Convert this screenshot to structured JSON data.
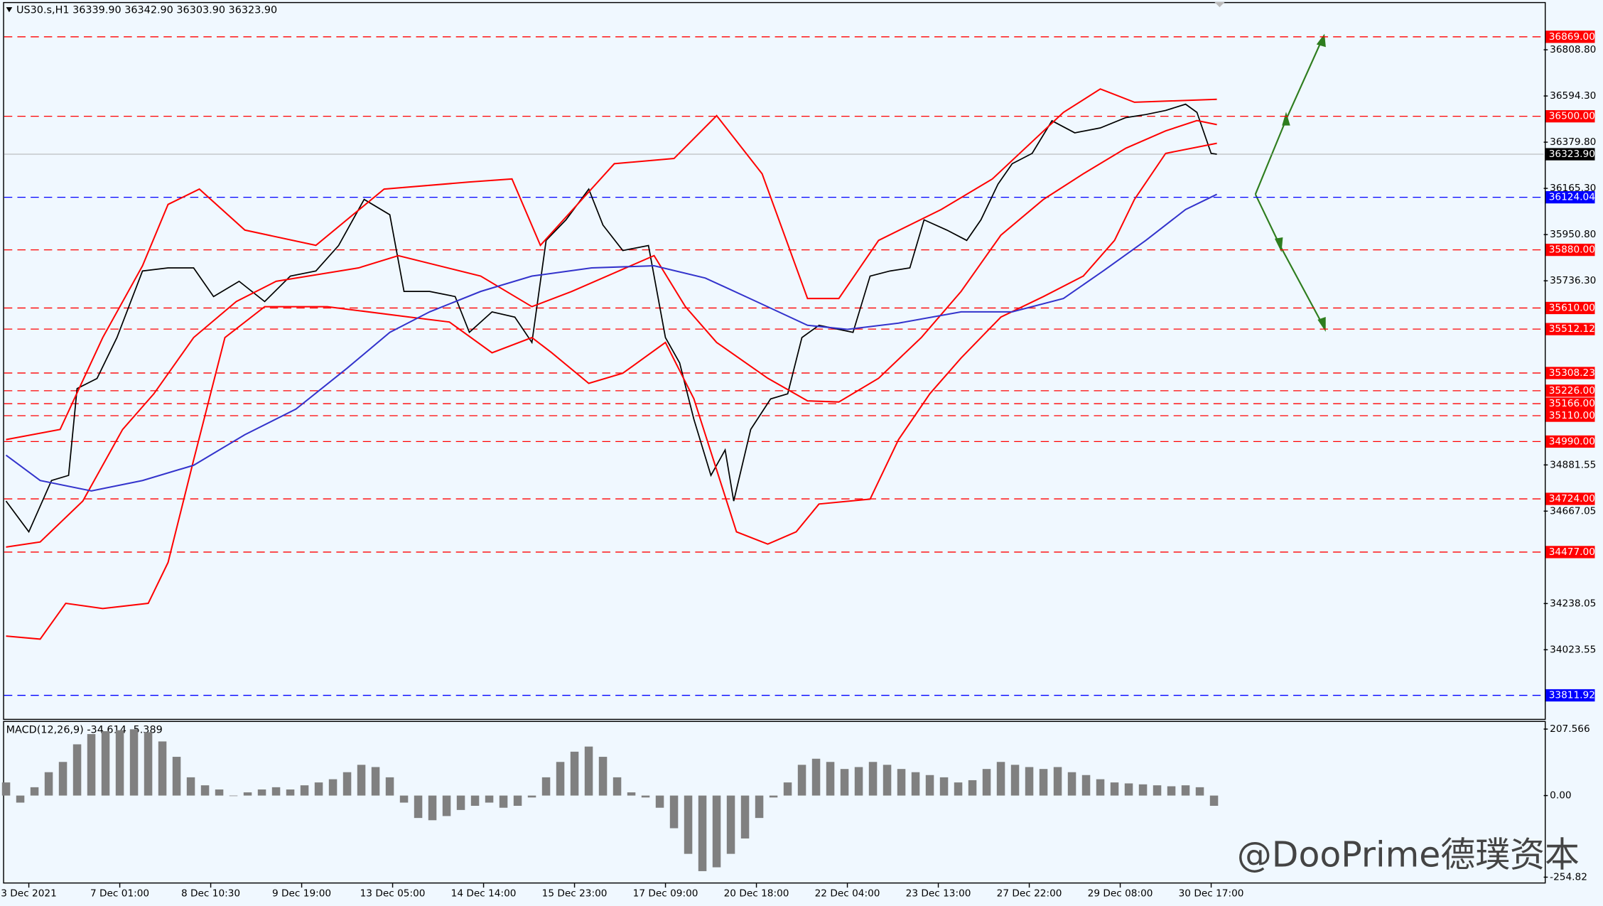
{
  "chart_data": [
    {
      "type": "line",
      "title": "US30.s,H1  36339.90 36342.90 36303.90 36323.90",
      "xlim": [
        -0.7,
        541
      ],
      "ylim": [
        33702.7,
        37025.6
      ],
      "xticks": [
        {
          "value": 8,
          "label": "3 Dec 2021"
        },
        {
          "value": 40,
          "label": "7 Dec 01:00"
        },
        {
          "value": 72,
          "label": "8 Dec 10:30"
        },
        {
          "value": 104,
          "label": "9 Dec 19:00"
        },
        {
          "value": 136,
          "label": "13 Dec 05:00"
        },
        {
          "value": 168,
          "label": "14 Dec 14:00"
        },
        {
          "value": 200,
          "label": "15 Dec 23:00"
        },
        {
          "value": 232,
          "label": "17 Dec 09:00"
        },
        {
          "value": 264,
          "label": "20 Dec 18:00"
        },
        {
          "value": 296,
          "label": "22 Dec 04:00"
        },
        {
          "value": 328,
          "label": "23 Dec 13:00"
        },
        {
          "value": 360,
          "label": "27 Dec 22:00"
        },
        {
          "value": 392,
          "label": "29 Dec 08:00"
        },
        {
          "value": 424,
          "label": "30 Dec 17:00"
        }
      ],
      "yticks": [
        {
          "value": 36808.8,
          "label": "36808.80"
        },
        {
          "value": 36594.3,
          "label": "36594.30"
        },
        {
          "value": 36379.8,
          "label": "36379.80"
        },
        {
          "value": 36165.3,
          "label": "36165.30"
        },
        {
          "value": 35950.8,
          "label": "35950.80"
        },
        {
          "value": 35736.3,
          "label": "35736.30"
        },
        {
          "value": 34881.55,
          "label": "34881.55"
        },
        {
          "value": 34667.05,
          "label": "34667.05"
        },
        {
          "value": 34238.05,
          "label": "34238.05"
        },
        {
          "value": 34023.55,
          "label": "34023.55"
        }
      ],
      "levels": [
        {
          "value": 36869,
          "label": "36869.00",
          "color": "#ff0000"
        },
        {
          "value": 36500,
          "label": "36500.00",
          "color": "#ff0000"
        },
        {
          "value": 36124.04,
          "label": "36124.04",
          "color": "#0000ff"
        },
        {
          "value": 35880,
          "label": "35880.00",
          "color": "#ff0000"
        },
        {
          "value": 35610,
          "label": "35610.00",
          "color": "#ff0000"
        },
        {
          "value": 35512.12,
          "label": "35512.12",
          "color": "#ff0000"
        },
        {
          "value": 35308.23,
          "label": "35308.23",
          "color": "#ff0000"
        },
        {
          "value": 35226,
          "label": "35226.00",
          "color": "#ff0000"
        },
        {
          "value": 35166,
          "label": "35166.00",
          "color": "#ff0000"
        },
        {
          "value": 35110,
          "label": "35110.00",
          "color": "#ff0000"
        },
        {
          "value": 34990,
          "label": "34990.00",
          "color": "#ff0000"
        },
        {
          "value": 34724,
          "label": "34724.00",
          "color": "#ff0000"
        },
        {
          "value": 34477,
          "label": "34477.00",
          "color": "#ff0000"
        },
        {
          "value": 33811.92,
          "label": "33811.92",
          "color": "#0000ff"
        }
      ],
      "last": {
        "value": 36323.9,
        "label": "36323.90"
      },
      "series": [
        {
          "color": "#000000",
          "x": [
            0,
            8,
            16,
            22,
            25,
            32,
            39,
            48,
            57,
            66,
            73,
            82,
            91,
            100,
            109,
            117,
            126,
            135,
            140,
            149,
            158,
            163,
            171,
            179,
            185,
            190,
            197,
            205,
            210,
            217,
            226,
            232,
            237,
            242,
            248,
            253,
            256,
            262,
            269,
            275,
            280,
            286,
            293,
            298,
            304,
            311,
            318,
            323,
            331,
            338,
            343,
            349,
            354,
            361,
            368,
            376,
            385,
            394,
            401,
            408,
            415,
            419,
            424,
            426
          ],
          "values": [
            34714,
            34571,
            34809,
            34833,
            35236,
            35283,
            35473,
            35782,
            35796,
            35796,
            35663,
            35734,
            35640,
            35758,
            35782,
            35900,
            36114,
            36043,
            35687,
            35687,
            35663,
            35497,
            35592,
            35568,
            35450,
            35924,
            36019,
            36162,
            35995,
            35877,
            35900,
            35473,
            35355,
            35094,
            34833,
            34951,
            34714,
            35046,
            35188,
            35212,
            35473,
            35530,
            35511,
            35497,
            35758,
            35782,
            35796,
            36019,
            35972,
            35924,
            36019,
            36185,
            36280,
            36328,
            36479,
            36423,
            36446,
            36494,
            36508,
            36527,
            36556,
            36518,
            36328,
            36323.9
          ]
        },
        {
          "color": "#ff0000",
          "x": [
            0,
            19,
            34,
            48,
            57,
            68,
            84,
            109,
            133,
            163,
            178,
            188,
            214,
            235,
            250,
            266,
            282,
            293,
            307,
            329,
            347,
            372,
            385,
            397,
            426
          ],
          "values": [
            34999,
            35046,
            35473,
            35806,
            36091,
            36162,
            35972,
            35901,
            36162,
            36195,
            36209,
            35901,
            36280,
            36304,
            36503,
            36233,
            35654,
            35654,
            35924,
            36067,
            36209,
            36518,
            36627,
            36565,
            36579
          ]
        },
        {
          "color": "#ff0000",
          "x": [
            0,
            12,
            21,
            34,
            50,
            57,
            66,
            77,
            91,
            113,
            142,
            156,
            171,
            185,
            192,
            205,
            217,
            232,
            242,
            257,
            268,
            278,
            286,
            304,
            314,
            325,
            336,
            350,
            365,
            379,
            390,
            397,
            408,
            426
          ],
          "values": [
            34087,
            34073,
            34239,
            34215,
            34239,
            34429,
            34904,
            35473,
            35616,
            35616,
            35568,
            35545,
            35402,
            35473,
            35402,
            35260,
            35307,
            35450,
            35189,
            34571,
            34514,
            34571,
            34700,
            34723,
            34999,
            35212,
            35378,
            35568,
            35663,
            35758,
            35924,
            36114,
            36328,
            36375
          ]
        },
        {
          "color": "#ff0000",
          "x": [
            0,
            12,
            27,
            41,
            52,
            66,
            81,
            95,
            124,
            138,
            167,
            185,
            199,
            228,
            239,
            250,
            268,
            282,
            293,
            307,
            322,
            336,
            350,
            365,
            379,
            394,
            408,
            419,
            426
          ],
          "values": [
            34500,
            34524,
            34714,
            35046,
            35212,
            35473,
            35640,
            35734,
            35796,
            35853,
            35758,
            35616,
            35687,
            35853,
            35616,
            35450,
            35284,
            35179,
            35174,
            35284,
            35473,
            35687,
            35948,
            36114,
            36233,
            36352,
            36432,
            36480,
            36461
          ]
        },
        {
          "color": "#3333cc",
          "x": [
            0,
            12,
            30,
            48,
            66,
            84,
            102,
            120,
            135,
            149,
            167,
            185,
            206,
            228,
            246,
            264,
            282,
            296,
            314,
            336,
            354,
            372,
            386,
            401,
            415,
            426
          ],
          "values": [
            34927,
            34809,
            34761,
            34809,
            34880,
            35022,
            35141,
            35331,
            35497,
            35592,
            35687,
            35758,
            35796,
            35806,
            35749,
            35640,
            35530,
            35511,
            35540,
            35592,
            35592,
            35654,
            35782,
            35924,
            36067,
            36138
          ]
        }
      ]
    },
    {
      "type": "bar",
      "title": "MACD(12,26,9) -34.614 -5.389",
      "color": "#808080",
      "xlim": [
        -0.7,
        541
      ],
      "ylim": [
        -268.2,
        229.9
      ],
      "yticks": [
        207.566,
        {
          "value": 0,
          "label": "0.00"
        },
        -254.82
      ],
      "x": [
        0,
        5,
        10,
        15,
        20,
        25,
        30,
        35,
        40,
        45,
        50,
        55,
        60,
        65,
        70,
        75,
        80,
        85,
        90,
        95,
        100,
        105,
        110,
        115,
        120,
        125,
        130,
        135,
        140,
        145,
        150,
        155,
        160,
        165,
        170,
        175,
        180,
        185,
        190,
        195,
        200,
        205,
        210,
        215,
        220,
        225,
        230,
        235,
        240,
        245,
        250,
        255,
        260,
        265,
        270,
        275,
        280,
        285,
        290,
        295,
        300,
        305,
        310,
        315,
        320,
        325,
        330,
        335,
        340,
        345,
        350,
        355,
        360,
        365,
        370,
        375,
        380,
        385,
        390,
        395,
        400,
        405,
        410,
        415,
        420,
        425
      ],
      "values": [
        41,
        -22,
        26,
        73,
        105,
        160,
        192,
        201,
        204,
        207,
        198,
        169,
        121,
        57,
        32,
        19,
        0,
        10,
        19,
        26,
        19,
        32,
        41,
        51,
        73,
        96,
        89,
        57,
        -22,
        -70,
        -77,
        -64,
        -45,
        -32,
        -22,
        -38,
        -32,
        -6,
        57,
        105,
        137,
        153,
        121,
        57,
        10,
        -6,
        -38,
        -102,
        -182,
        -236,
        -224,
        -182,
        -134,
        -70,
        -6,
        41,
        96,
        115,
        105,
        83,
        89,
        105,
        96,
        83,
        73,
        64,
        57,
        41,
        48,
        83,
        105,
        96,
        89,
        83,
        89,
        73,
        64,
        51,
        41,
        38,
        35,
        32,
        29,
        32,
        26,
        -32
      ]
    }
  ],
  "watermark": "@DooPrime德璞资本"
}
